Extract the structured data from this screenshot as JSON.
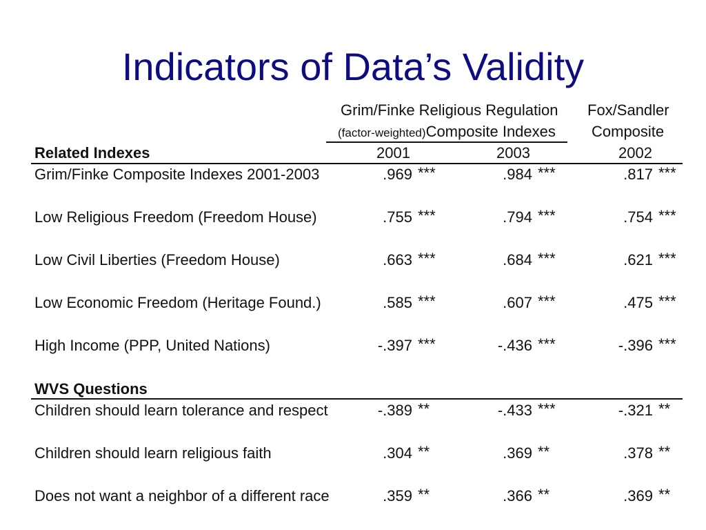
{
  "title": "Indicators of Data’s Validity",
  "headers": {
    "group1_line1": "Grim/Finke Religious Regulation",
    "group1_line2_small": "(factor-weighted)",
    "group1_line2": "Composite Indexes",
    "group2_line1": "Fox/Sandler",
    "group2_line2": "Composite",
    "col1": "2001",
    "col2": "2003",
    "col3": "2002"
  },
  "sections": [
    {
      "heading": "Related Indexes",
      "rows": [
        {
          "label": "Grim/Finke Composite Indexes 2001-2003",
          "v": [
            ".969",
            ".984",
            ".817"
          ],
          "s": [
            "***",
            "***",
            "***"
          ]
        },
        {
          "label": "Low Religious Freedom (Freedom House)",
          "v": [
            ".755",
            ".794",
            ".754"
          ],
          "s": [
            "***",
            "***",
            "***"
          ]
        },
        {
          "label": "Low Civil Liberties (Freedom House)",
          "v": [
            ".663",
            ".684",
            ".621"
          ],
          "s": [
            "***",
            "***",
            "***"
          ]
        },
        {
          "label": "Low Economic Freedom (Heritage Found.)",
          "v": [
            ".585",
            ".607",
            ".475"
          ],
          "s": [
            "***",
            "***",
            "***"
          ]
        },
        {
          "label": "High Income (PPP, United Nations)",
          "v": [
            "-.397",
            "-.436",
            "-.396"
          ],
          "s": [
            "***",
            "***",
            "***"
          ]
        }
      ]
    },
    {
      "heading": "WVS Questions",
      "rows": [
        {
          "label": "Children should learn tolerance and respect",
          "v": [
            "-.389",
            "-.433",
            "-.321"
          ],
          "s": [
            "**",
            "***",
            "**"
          ]
        },
        {
          "label": "Children should learn religious faith",
          "v": [
            ".304",
            ".369",
            ".378"
          ],
          "s": [
            "**",
            "**",
            "**"
          ]
        },
        {
          "label": "Does not want a neighbor of a different race",
          "v": [
            ".359",
            ".366",
            ".369"
          ],
          "s": [
            "**",
            "**",
            "**"
          ]
        }
      ]
    }
  ]
}
